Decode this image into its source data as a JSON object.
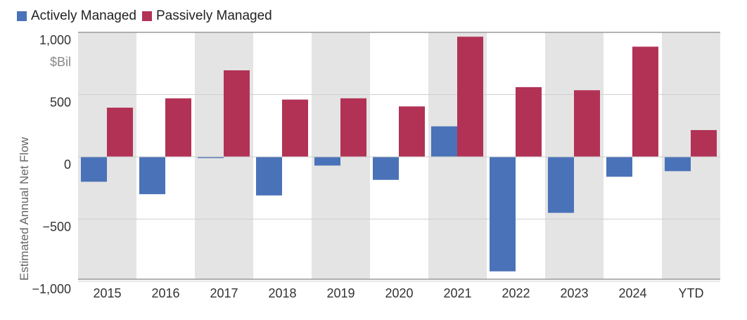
{
  "legend": {
    "items": [
      {
        "label": "Actively Managed",
        "color": "#4a72b8"
      },
      {
        "label": "Passively Managed",
        "color": "#b23256"
      }
    ]
  },
  "chart_data": {
    "type": "bar",
    "categories": [
      "2015",
      "2016",
      "2017",
      "2018",
      "2019",
      "2020",
      "2021",
      "2022",
      "2023",
      "2024",
      "YTD"
    ],
    "series": [
      {
        "name": "Actively Managed",
        "color": "#4a72b8",
        "values": [
          -200,
          -300,
          -10,
          -310,
          -70,
          -185,
          245,
          -920,
          -450,
          -160,
          -115
        ]
      },
      {
        "name": "Passively Managed",
        "color": "#b23256",
        "values": [
          395,
          470,
          695,
          460,
          470,
          405,
          965,
          560,
          535,
          885,
          215
        ]
      }
    ],
    "yticks": [
      {
        "value": 1000,
        "label": "1,000"
      },
      {
        "value": 500,
        "label": "500"
      },
      {
        "value": 0,
        "label": "0"
      },
      {
        "value": -500,
        "label": "−500"
      },
      {
        "value": -1000,
        "label": "−1,000"
      }
    ],
    "ylabel": "Estimated Annual Net Flow",
    "yunit": "$Bil",
    "ylim": [
      -1000,
      1000
    ],
    "grid": true,
    "legend_position": "top-left"
  }
}
